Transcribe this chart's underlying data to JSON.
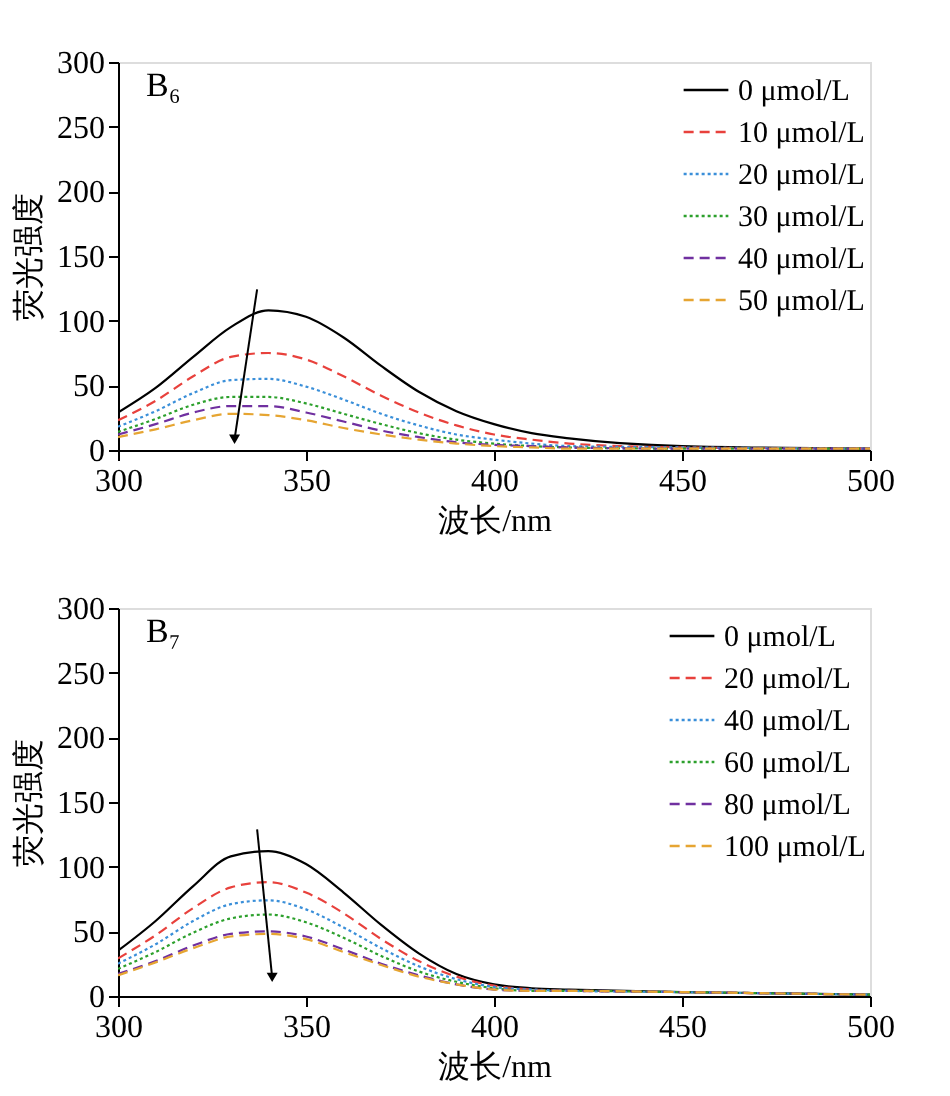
{
  "chart_data": [
    {
      "type": "line",
      "title": "B₆",
      "xlabel": "波长/nm",
      "ylabel": "荧光强度",
      "xlim": [
        300,
        500
      ],
      "ylim": [
        0,
        300
      ],
      "xticks": [
        300,
        350,
        400,
        450,
        500
      ],
      "yticks": [
        0,
        50,
        100,
        150,
        200,
        250,
        300
      ],
      "grid": false,
      "legend": "top right",
      "marker": "none",
      "x": [
        300,
        310,
        320,
        330,
        340,
        350,
        360,
        370,
        380,
        390,
        400,
        410,
        420,
        450,
        500
      ],
      "series": [
        {
          "name": "0 μmol/L",
          "color": "#000000",
          "line_style": "solid",
          "values": [
            29,
            48,
            72,
            95,
            108,
            103,
            87,
            65,
            45,
            30,
            20,
            13,
            9,
            3,
            1
          ]
        },
        {
          "name": "10 μmol/L",
          "color": "#e8413c",
          "line_style": "dashed",
          "values": [
            23,
            38,
            57,
            72,
            75,
            70,
            57,
            42,
            29,
            19,
            12,
            8,
            5,
            2,
            1
          ]
        },
        {
          "name": "20 μmol/L",
          "color": "#3a8fd9",
          "line_style": "dotted",
          "values": [
            18,
            30,
            44,
            54,
            55,
            49,
            39,
            28,
            19,
            12,
            8,
            5,
            3,
            2,
            1
          ]
        },
        {
          "name": "30 μmol/L",
          "color": "#2ca02c",
          "line_style": "dotted",
          "values": [
            14,
            24,
            35,
            41,
            41,
            36,
            28,
            20,
            13,
            8,
            5,
            3,
            2,
            1,
            1
          ]
        },
        {
          "name": "40 μmol/L",
          "color": "#7030a0",
          "line_style": "dashed",
          "values": [
            12,
            20,
            29,
            34,
            34,
            29,
            22,
            15,
            10,
            6,
            4,
            3,
            2,
            1,
            1
          ]
        },
        {
          "name": "50 μmol/L",
          "color": "#e6a532",
          "line_style": "dashed",
          "values": [
            10,
            16,
            23,
            28,
            27,
            23,
            17,
            12,
            8,
            5,
            3,
            2,
            1,
            1,
            1
          ]
        }
      ]
    },
    {
      "type": "line",
      "title": "B₇",
      "xlabel": "波长/nm",
      "ylabel": "荧光强度",
      "xlim": [
        300,
        500
      ],
      "ylim": [
        0,
        300
      ],
      "xticks": [
        300,
        350,
        400,
        450,
        500
      ],
      "yticks": [
        0,
        50,
        100,
        150,
        200,
        250,
        300
      ],
      "grid": false,
      "legend": "top right",
      "marker": "none",
      "x": [
        300,
        310,
        320,
        330,
        340,
        350,
        360,
        370,
        380,
        390,
        400,
        410,
        420,
        450,
        500
      ],
      "series": [
        {
          "name": "0 μmol/L",
          "color": "#000000",
          "line_style": "solid",
          "values": [
            35,
            58,
            85,
            108,
            112,
            102,
            80,
            55,
            33,
            17,
            9,
            6,
            5,
            3,
            1
          ]
        },
        {
          "name": "20 μmol/L",
          "color": "#e8413c",
          "line_style": "dashed",
          "values": [
            29,
            47,
            68,
            84,
            88,
            80,
            64,
            44,
            27,
            15,
            8,
            5,
            4,
            3,
            1
          ]
        },
        {
          "name": "40 μmol/L",
          "color": "#3a8fd9",
          "line_style": "dotted",
          "values": [
            25,
            40,
            58,
            71,
            74,
            67,
            53,
            37,
            23,
            13,
            7,
            5,
            4,
            3,
            1
          ]
        },
        {
          "name": "60 μmol/L",
          "color": "#2ca02c",
          "line_style": "dotted",
          "values": [
            21,
            34,
            49,
            60,
            63,
            57,
            45,
            31,
            19,
            11,
            6,
            4,
            4,
            3,
            1
          ]
        },
        {
          "name": "80 μmol/L",
          "color": "#7030a0",
          "line_style": "dashed",
          "values": [
            17,
            27,
            39,
            48,
            50,
            46,
            36,
            25,
            16,
            9,
            5,
            4,
            4,
            3,
            1
          ]
        },
        {
          "name": "100 μmol/L",
          "color": "#e6a532",
          "line_style": "dashed",
          "values": [
            16,
            26,
            37,
            46,
            48,
            44,
            34,
            24,
            15,
            9,
            5,
            4,
            4,
            3,
            1
          ]
        }
      ]
    }
  ]
}
